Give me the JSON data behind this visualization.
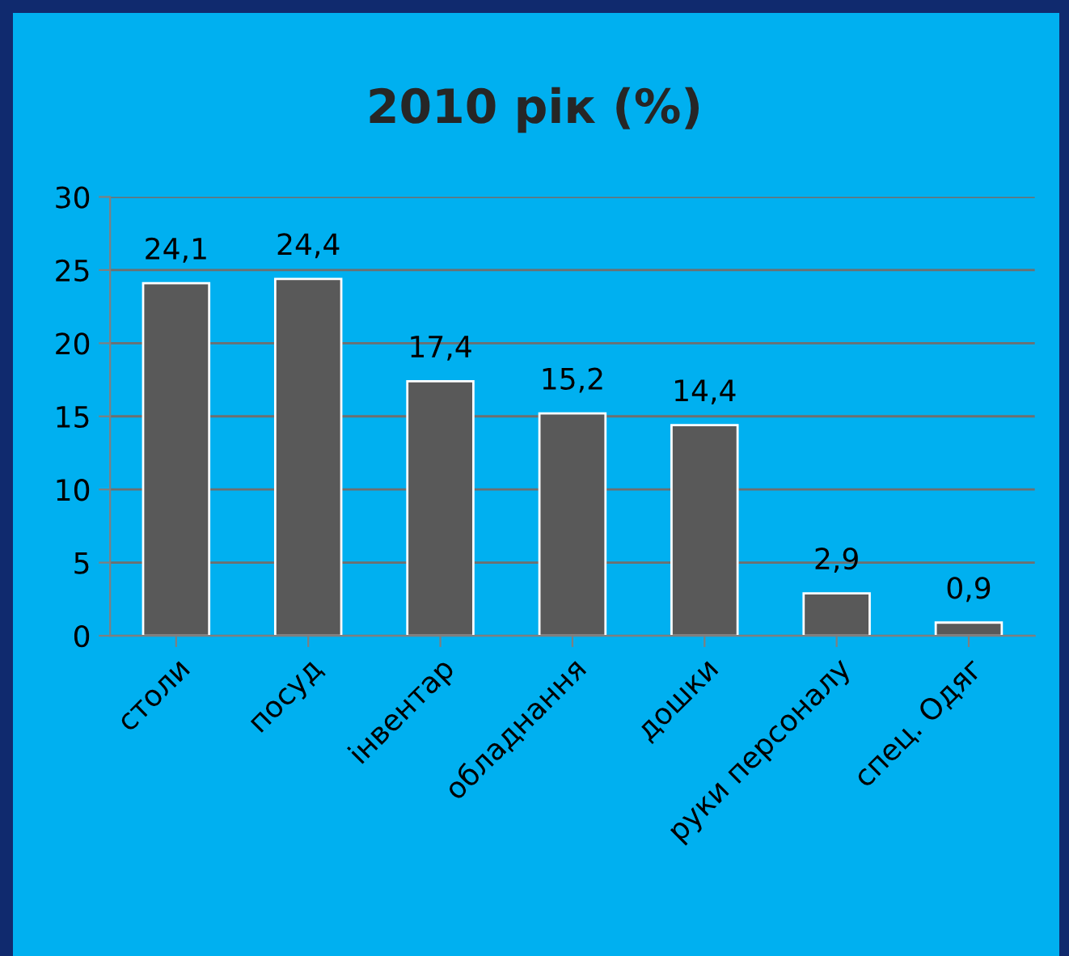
{
  "chart_data": {
    "type": "bar",
    "title": "2010 рік (%)",
    "categories": [
      "столи",
      "посуд",
      "інвентар",
      "обладнання",
      "дошки",
      "руки персоналу",
      "спец. Одяг"
    ],
    "values": [
      24.1,
      24.4,
      17.4,
      15.2,
      14.4,
      2.9,
      0.9
    ],
    "value_labels": [
      "24,1",
      "24,4",
      "17,4",
      "15,2",
      "14,4",
      "2,9",
      "0,9"
    ],
    "color": "#595959",
    "ylim": [
      0,
      30
    ],
    "yticks": [
      0,
      5,
      10,
      15,
      20,
      25,
      30
    ],
    "grid": "y"
  }
}
